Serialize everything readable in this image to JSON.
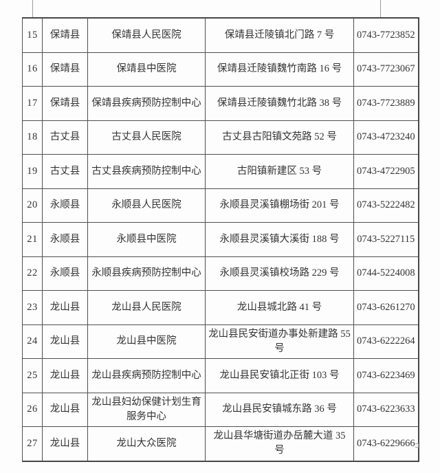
{
  "table": {
    "fields": [
      "num",
      "county",
      "institution",
      "address",
      "phone"
    ],
    "rows": [
      {
        "num": "15",
        "county": "保靖县",
        "institution": "保靖县人民医院",
        "address": "保靖县迁陵镇北门路 7 号",
        "phone": "0743-7723852"
      },
      {
        "num": "16",
        "county": "保靖县",
        "institution": "保靖县中医院",
        "address": "保靖县迁陵镇魏竹南路 16 号",
        "phone": "0743-7723067"
      },
      {
        "num": "17",
        "county": "保靖县",
        "institution": "保靖县疾病预防控制中心",
        "address": "保靖县迁陵镇魏竹北路 38 号",
        "phone": "0743-7723889"
      },
      {
        "num": "18",
        "county": "古丈县",
        "institution": "古丈县人民医院",
        "address": "古丈县古阳镇文苑路 52 号",
        "phone": "0743-4723240"
      },
      {
        "num": "19",
        "county": "古丈县",
        "institution": "古丈县疾病预防控制中心",
        "address": "古阳镇新建区 53 号",
        "phone": "0743-4722905"
      },
      {
        "num": "20",
        "county": "永顺县",
        "institution": "永顺县人民医院",
        "address": "永顺县灵溪镇棚场街 201 号",
        "phone": "0743-5222482"
      },
      {
        "num": "21",
        "county": "永顺县",
        "institution": "永顺县中医院",
        "address": "永顺县灵溪镇大溪街 188 号",
        "phone": "0743-5227115"
      },
      {
        "num": "22",
        "county": "永顺县",
        "institution": "永顺县疾病预防控制中心",
        "address": "永顺县灵溪镇校场路 229 号",
        "phone": "0744-5224008"
      },
      {
        "num": "23",
        "county": "龙山县",
        "institution": "龙山县人民医院",
        "address": "龙山县城北路 41 号",
        "phone": "0743-6261270"
      },
      {
        "num": "24",
        "county": "龙山县",
        "institution": "龙山县中医院",
        "address": "龙山县民安街道办事处新建路 55 号",
        "phone": "0743-6222264"
      },
      {
        "num": "25",
        "county": "龙山县",
        "institution": "龙山县疾病预防控制中心",
        "address": "龙山县民安镇北正街 103 号",
        "phone": "0743-6223469"
      },
      {
        "num": "26",
        "county": "龙山县",
        "institution": "龙山县妇幼保健计划生育服务中心",
        "address": "龙山县民安镇城东路 36 号",
        "phone": "0743-6223633"
      },
      {
        "num": "27",
        "county": "龙山县",
        "institution": "龙山大众医院",
        "address": "龙山县华塘街道办岳麓大道 35 号",
        "phone": "0743-6229666"
      }
    ]
  },
  "colors": {
    "page_background": "#fdfdfd",
    "border": "#4f4f4f",
    "text": "#333333",
    "tick": "#9a9a9a"
  }
}
